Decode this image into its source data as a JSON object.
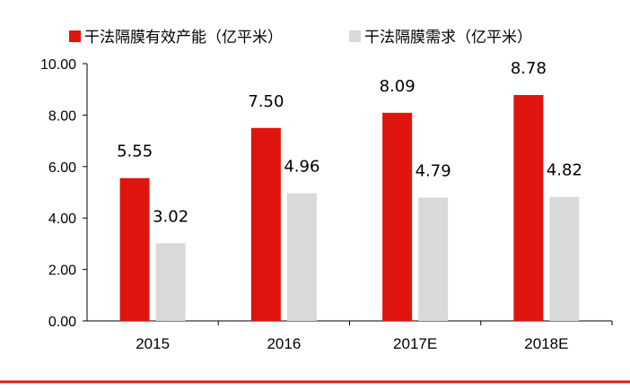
{
  "chart_data": {
    "type": "bar",
    "categories": [
      "2015",
      "2016",
      "2017E",
      "2018E"
    ],
    "series": [
      {
        "name": "干法隔膜有效产能（亿平米）",
        "values": [
          5.55,
          7.5,
          8.09,
          8.78
        ],
        "color": "#e0140e",
        "labels": [
          "5.55",
          "7.50",
          "8.09",
          "8.78"
        ]
      },
      {
        "name": "干法隔膜需求（亿平米）",
        "values": [
          3.02,
          4.96,
          4.79,
          4.82
        ],
        "color": "#d9d9d9",
        "labels": [
          "3.02",
          "4.96",
          "4.79",
          "4.82"
        ]
      }
    ],
    "yticks": [
      "0.00",
      "2.00",
      "4.00",
      "6.00",
      "8.00",
      "10.00"
    ],
    "ylim": [
      0,
      10
    ],
    "legend_position": "top",
    "grid": false,
    "rule_color": "#e0140e"
  }
}
